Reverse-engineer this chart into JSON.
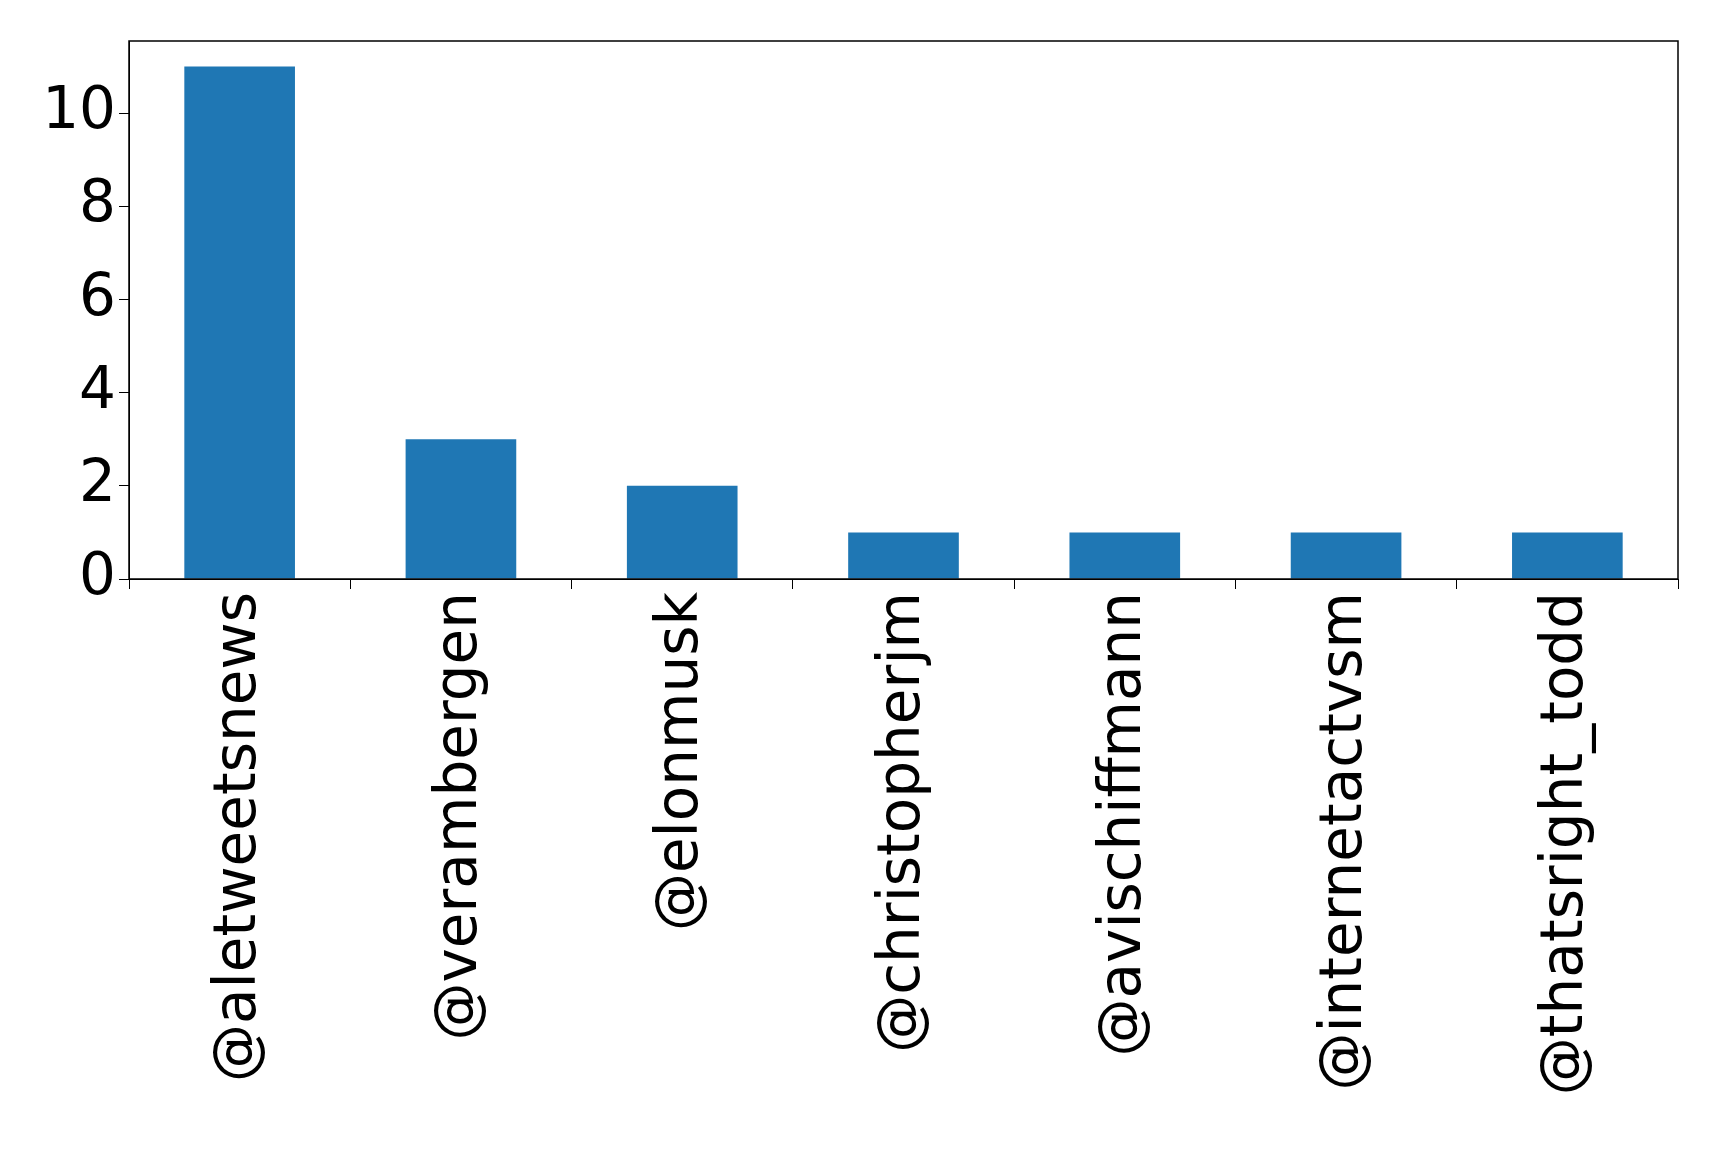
{
  "chart_data": {
    "type": "bar",
    "categories": [
      "@aletweetsnews",
      "@verambergen",
      "@elonmusk",
      "@christopherjm",
      "@avischiffmann",
      "@internetactvsm",
      "@thatsright_todd"
    ],
    "values": [
      11,
      3,
      2,
      1,
      1,
      1,
      1
    ],
    "color": "#1f77b4",
    "ylim": [
      0,
      11.55
    ],
    "yticks": [
      0,
      2,
      4,
      6,
      8,
      10
    ],
    "grid": false,
    "legend": false
  }
}
